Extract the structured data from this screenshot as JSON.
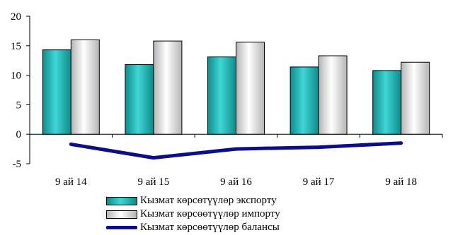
{
  "chart_data": {
    "type": "bar",
    "categories": [
      "9 ай 14",
      "9 ай 15",
      "9 ай 16",
      "9 ай 17",
      "9 ай 18"
    ],
    "series": [
      {
        "name": "Кызмат көрсөтүүлөр экспорту",
        "type": "bar",
        "values": [
          14.3,
          11.8,
          13.1,
          11.4,
          10.8
        ],
        "color": "#2bc1c1"
      },
      {
        "name": "Кызмат көрсөөтүүлөр импорту",
        "type": "bar",
        "values": [
          16.0,
          15.8,
          15.6,
          13.3,
          12.2
        ],
        "color": "#e6e6e6"
      },
      {
        "name": "Кызмат көрсөөтүүлөр балансы",
        "type": "line",
        "values": [
          -1.7,
          -4.0,
          -2.5,
          -2.2,
          -1.5
        ],
        "color": "#0d0d8c"
      }
    ],
    "ylim": [
      -5,
      20
    ],
    "yticks": [
      -5,
      0,
      5,
      10,
      15,
      20
    ],
    "grid": false,
    "legend_position": "bottom"
  }
}
